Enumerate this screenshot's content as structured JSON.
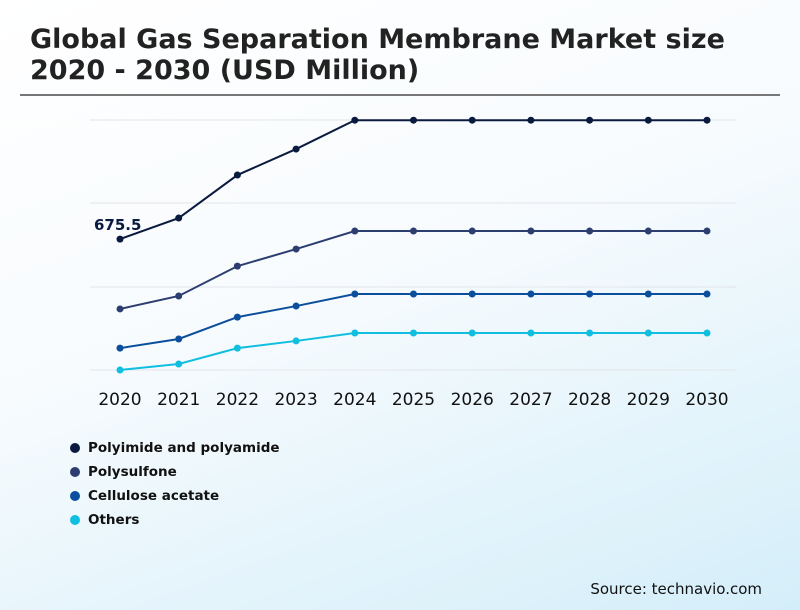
{
  "chart_data": {
    "type": "line",
    "title": "Global Gas Separation Membrane Market size 2020 - 2030 (USD Million)",
    "categories": [
      "2020",
      "2021",
      "2022",
      "2023",
      "2024",
      "2025",
      "2026",
      "2027",
      "2028",
      "2029",
      "2030"
    ],
    "ylim": [
      0,
      1290
    ],
    "grid": true,
    "legend_placement": "bottom-left",
    "annotations": [
      {
        "series": "Polyimide and polyamide",
        "x": "2020",
        "label": "675.5"
      }
    ],
    "series": [
      {
        "name": "Polyimide and polyamide",
        "color": "#0a1a3e",
        "values": [
          675.5,
          784,
          1006,
          1140,
          1289,
          1289,
          1289,
          1289,
          1289,
          1289,
          1289
        ]
      },
      {
        "name": "Polysulfone",
        "color": "#2c3e70",
        "values": [
          315,
          382,
          536,
          624,
          717,
          717,
          717,
          717,
          717,
          717,
          717
        ]
      },
      {
        "name": "Cellulose acetate",
        "color": "#0b4f9c",
        "values": [
          113,
          160,
          273,
          330,
          392,
          392,
          392,
          392,
          392,
          392,
          392
        ]
      },
      {
        "name": "Others",
        "color": "#10bfe0",
        "values": [
          0,
          31,
          113,
          150,
          191,
          191,
          191,
          191,
          191,
          191,
          191
        ]
      }
    ]
  },
  "source": "Source: technavio.com"
}
